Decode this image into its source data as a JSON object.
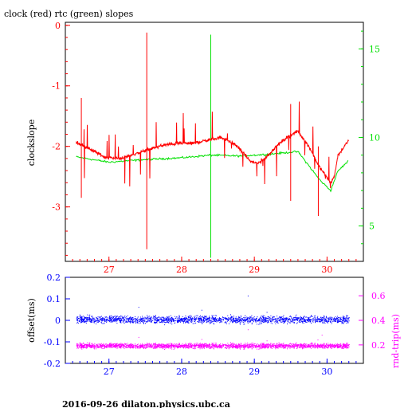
{
  "title": "clock (red) rtc (green) slopes",
  "footer": "2016-09-26  dilaton.physics.ubc.ca",
  "colors": {
    "clock": "#ff0000",
    "rtc": "#00e000",
    "offset": "#0000ff",
    "rnd_trip": "#ff00ff",
    "axis_top": "#ff0000",
    "axis_top_right": "#00e000",
    "axis_bottom": "#0000ff",
    "axis_bottom_right": "#ff00ff"
  },
  "chart_data": [
    {
      "type": "line",
      "title": "clock (red) rtc (green) slopes",
      "xlabel": "",
      "ylabel": "clockslope",
      "xlim": [
        26.4,
        30.5
      ],
      "ylim": [
        -3.9,
        0.05
      ],
      "xticks": [
        "27",
        "28",
        "29",
        "30"
      ],
      "yticks": [
        "0",
        "-1",
        "-2",
        "-3"
      ],
      "y2lim": [
        3.0,
        16.5
      ],
      "y2ticks": [
        "15",
        "10",
        "5"
      ],
      "series": [
        {
          "name": "clock",
          "axis": "left",
          "x": [
            26.55,
            26.75,
            26.95,
            27.15,
            27.35,
            27.55,
            27.75,
            27.95,
            28.15,
            28.35,
            28.55,
            28.75,
            28.95,
            29.05,
            29.15,
            29.3,
            29.45,
            29.6,
            29.75,
            29.9,
            30.05,
            30.1,
            30.15,
            30.3
          ],
          "y": [
            -1.93,
            -2.05,
            -2.18,
            -2.2,
            -2.13,
            -2.05,
            -1.98,
            -1.95,
            -1.95,
            -1.9,
            -1.85,
            -1.98,
            -2.25,
            -2.28,
            -2.2,
            -2.0,
            -1.85,
            -1.75,
            -2.0,
            -2.35,
            -2.6,
            -2.5,
            -2.15,
            -1.9
          ],
          "spikes": [
            {
              "x": 27.52,
              "low": -3.7,
              "high": -0.12
            },
            {
              "x": 26.62,
              "low": -2.85,
              "high": -1.2
            },
            {
              "x": 29.5,
              "low": -2.9,
              "high": -1.3
            },
            {
              "x": 29.88,
              "low": -3.15,
              "high": -2.0
            }
          ]
        },
        {
          "name": "rtc",
          "axis": "right",
          "x": [
            26.55,
            27.0,
            27.5,
            28.0,
            28.4,
            28.8,
            29.2,
            29.6,
            29.9,
            30.05,
            30.15,
            30.3
          ],
          "y": [
            8.9,
            8.6,
            8.75,
            8.85,
            9.0,
            8.95,
            9.05,
            9.2,
            7.6,
            7.0,
            8.1,
            8.7
          ],
          "spikes": [
            {
              "x": 28.4,
              "low": 3.2,
              "high": 15.8
            }
          ]
        }
      ]
    },
    {
      "type": "scatter",
      "xlabel": "",
      "ylabel": "offset(ms)",
      "y2label": "rnd-trip(ms)",
      "xlim": [
        26.4,
        30.5
      ],
      "ylim": [
        -0.2,
        0.2
      ],
      "xticks": [
        "27",
        "28",
        "29",
        "30"
      ],
      "yticks": [
        "0.2",
        "0.1",
        "0",
        "-0.1",
        "-0.2"
      ],
      "y2lim": [
        0.05,
        0.75
      ],
      "y2ticks": [
        "0.6",
        "0.4",
        "0.2"
      ],
      "series": [
        {
          "name": "offset",
          "axis": "left",
          "x_range": [
            26.55,
            30.3
          ],
          "center": 0.005,
          "spread": 0.025
        },
        {
          "name": "rnd-trip",
          "axis": "right",
          "x_range": [
            26.55,
            30.3
          ],
          "center": 0.195,
          "spread": 0.03
        }
      ]
    }
  ]
}
